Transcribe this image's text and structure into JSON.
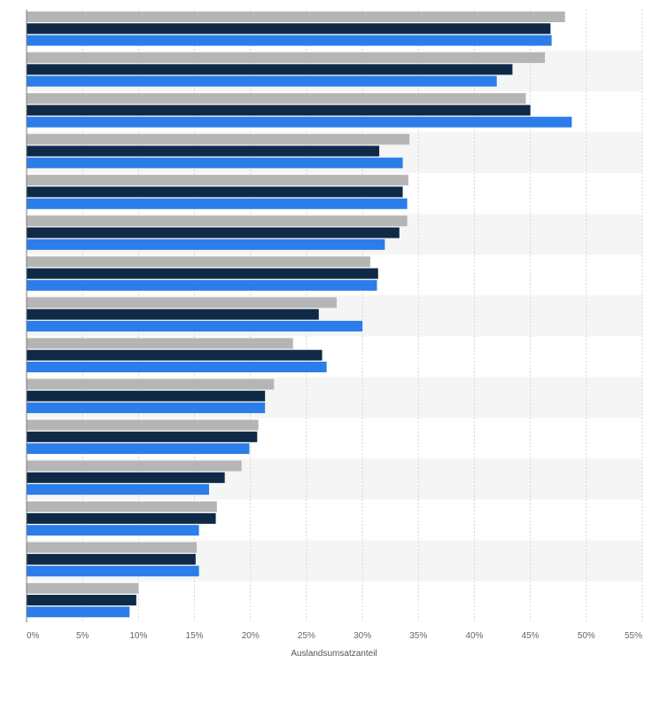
{
  "chart_data": {
    "type": "bar",
    "orientation": "horizontal",
    "xlabel": "Auslandsumsatzanteil",
    "xlim": [
      0,
      55
    ],
    "x_ticks": [
      "0%",
      "5%",
      "10%",
      "15%",
      "20%",
      "25%",
      "30%",
      "35%",
      "40%",
      "45%",
      "50%",
      "55%"
    ],
    "grid": true,
    "series": [
      {
        "color": "#b5b5b5",
        "values": [
          48.1,
          46.3,
          44.6,
          34.2,
          34.1,
          34.0,
          30.7,
          27.7,
          23.8,
          22.1,
          20.7,
          19.2,
          17.0,
          15.2,
          10.0
        ]
      },
      {
        "color": "#0f2a47",
        "values": [
          46.8,
          43.4,
          45.0,
          31.5,
          33.6,
          33.3,
          31.4,
          26.1,
          26.4,
          21.3,
          20.6,
          17.7,
          16.9,
          15.1,
          9.8
        ]
      },
      {
        "color": "#2b7de9",
        "values": [
          46.9,
          42.0,
          48.7,
          33.6,
          34.0,
          32.0,
          31.3,
          30.0,
          26.8,
          21.3,
          19.9,
          16.3,
          15.4,
          15.4,
          9.2
        ]
      }
    ]
  }
}
